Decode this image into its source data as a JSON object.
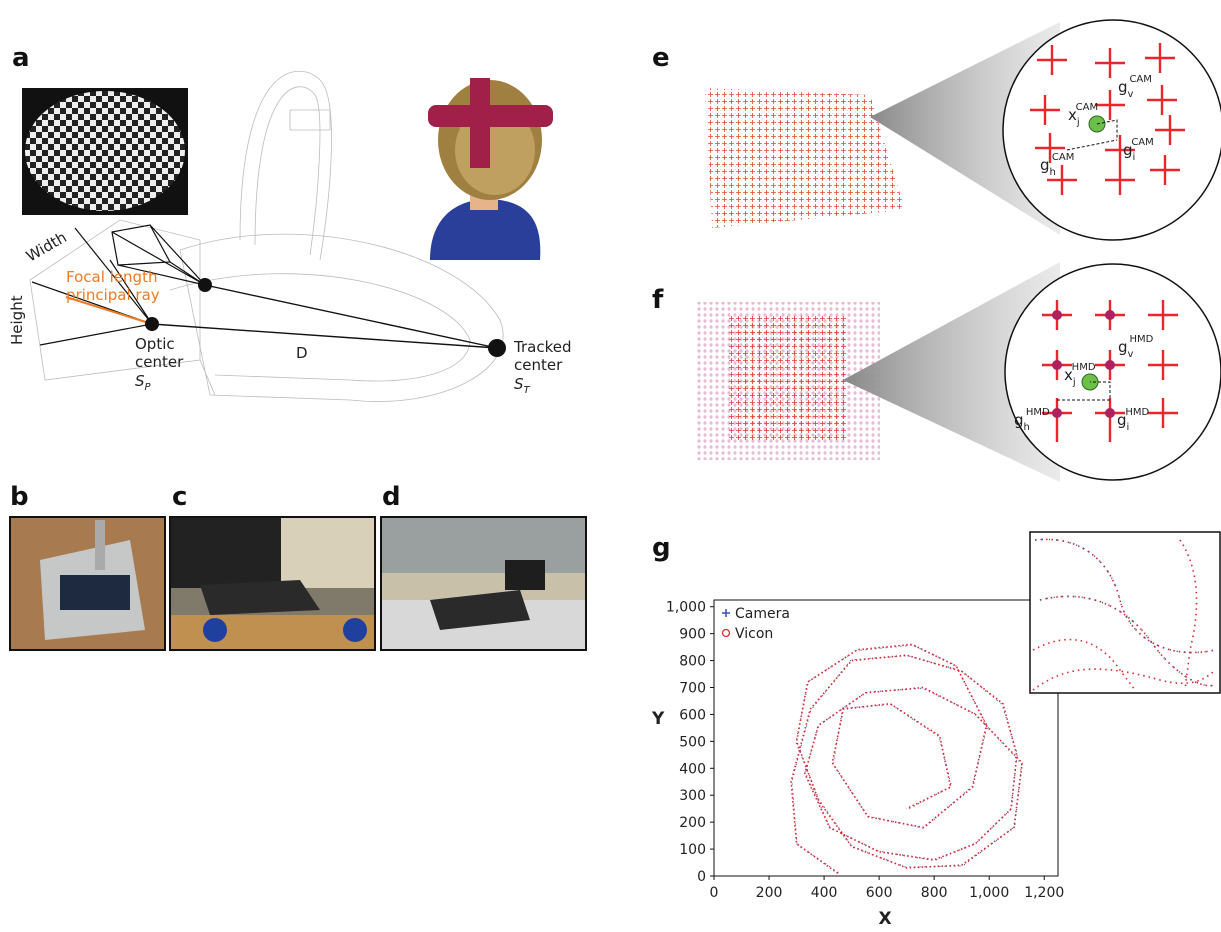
{
  "panel_a": {
    "label": "a",
    "width_label": "Width",
    "height_label": "Height",
    "focal_label": [
      "Focal length",
      "principal ray"
    ],
    "optic_center": [
      "Optic",
      "center"
    ],
    "optic_symbol": {
      "base": "S",
      "sub": "P"
    },
    "distance_label": "D",
    "tracked_center": [
      "Tracked",
      "center"
    ],
    "tracked_symbol": {
      "base": "S",
      "sub": "T"
    }
  },
  "panel_b": {
    "label": "b"
  },
  "panel_c": {
    "label": "c"
  },
  "panel_d": {
    "label": "d"
  },
  "panel_e": {
    "label": "e",
    "symbols": [
      {
        "base": "x",
        "sub": "j",
        "sup": "CAM"
      },
      {
        "base": "g",
        "sub": "v",
        "sup": "CAM"
      },
      {
        "base": "g",
        "sub": "h",
        "sup": "CAM"
      },
      {
        "base": "g",
        "sub": "i",
        "sup": "CAM"
      }
    ]
  },
  "panel_f": {
    "label": "f",
    "symbols": [
      {
        "base": "x",
        "sub": "j",
        "sup": "HMD"
      },
      {
        "base": "g",
        "sub": "v",
        "sup": "HMD"
      },
      {
        "base": "g",
        "sub": "h",
        "sup": "HMD"
      },
      {
        "base": "g",
        "sub": "i",
        "sup": "HMD"
      }
    ]
  },
  "panel_g": {
    "label": "g"
  },
  "chart_data": {
    "type": "line",
    "x_label": "X",
    "y_label": "Y",
    "xlim": [
      0,
      1250
    ],
    "ylim": [
      0,
      1025
    ],
    "xticks": [
      0,
      200,
      400,
      600,
      800,
      {
        "value": 1000,
        "label": "1,000"
      },
      {
        "value": 1200,
        "label": "1,200"
      }
    ],
    "yticks": [
      0,
      100,
      200,
      300,
      400,
      500,
      600,
      700,
      800,
      900,
      {
        "value": 1000,
        "label": "1,000"
      }
    ],
    "legend": "upper left",
    "series": [
      {
        "name": "Camera",
        "color": "#3a4fb0",
        "marker": "+",
        "x": [
          452,
          302,
          283,
          352,
          498,
          703,
          898,
          1047,
          1102,
          1078,
          953,
          802,
          597,
          423,
          332,
          378,
          553,
          758,
          947,
          1118,
          1092,
          903,
          698,
          503,
          382,
          298,
          343,
          517,
          722,
          878,
          993,
          938,
          763,
          557,
          433,
          468,
          643,
          818,
          863,
          703
        ],
        "y": [
          13,
          117,
          353,
          617,
          803,
          818,
          763,
          637,
          453,
          247,
          123,
          57,
          93,
          177,
          383,
          557,
          683,
          697,
          603,
          417,
          183,
          37,
          33,
          107,
          283,
          497,
          723,
          837,
          857,
          783,
          557,
          333,
          177,
          223,
          417,
          623,
          637,
          517,
          333,
          247
        ]
      },
      {
        "name": "Vicon",
        "color": "#e0262b",
        "marker": "o",
        "x": [
          450,
          300,
          280,
          350,
          500,
          700,
          900,
          1050,
          1100,
          1080,
          950,
          800,
          600,
          420,
          330,
          380,
          550,
          760,
          950,
          1120,
          1090,
          900,
          700,
          500,
          380,
          300,
          340,
          520,
          720,
          880,
          990,
          940,
          760,
          560,
          430,
          470,
          640,
          820,
          860,
          700
        ],
        "y": [
          10,
          120,
          350,
          620,
          800,
          820,
          760,
          640,
          450,
          250,
          120,
          60,
          90,
          180,
          380,
          560,
          680,
          700,
          600,
          420,
          180,
          40,
          30,
          110,
          280,
          500,
          720,
          840,
          860,
          780,
          560,
          330,
          180,
          220,
          420,
          620,
          640,
          520,
          330,
          250
        ]
      }
    ]
  }
}
